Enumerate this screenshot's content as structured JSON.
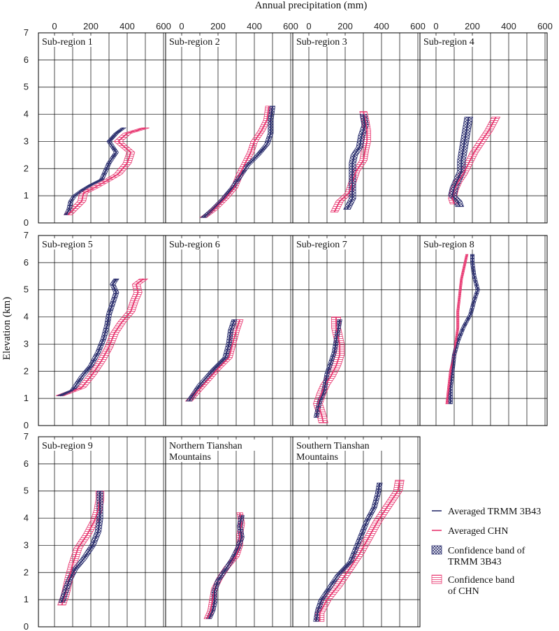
{
  "chart_data": {
    "type": "line",
    "title": "Annual precipitation (mm)",
    "xlabel": "Annual precipitation (mm)",
    "ylabel": "Elevation (km)",
    "xlim": [
      0,
      600
    ],
    "ylim": [
      0,
      7
    ],
    "xticks": [
      "0",
      "200",
      "400",
      "600"
    ],
    "yticks": [
      "0",
      "1",
      "2",
      "3",
      "4",
      "5",
      "6",
      "7"
    ],
    "grid": true,
    "legend_position": "bottom-right",
    "colors": {
      "trmm": "#2b2f6e",
      "chn": "#e8356f"
    },
    "legend": [
      {
        "label": "Averaged TRMM 3B43",
        "kind": "line",
        "color": "#2b2f6e"
      },
      {
        "label": "Averaged CHN",
        "kind": "line",
        "color": "#e8356f"
      },
      {
        "label": "Confidence band of TRMM 3B43",
        "lines": [
          "Confidence band of",
          "TRMM 3B43"
        ],
        "kind": "crosshatch",
        "color": "#2b2f6e"
      },
      {
        "label": "Confidence band of CHN",
        "lines": [
          "Confidence band",
          "of CHN"
        ],
        "kind": "hatch",
        "color": "#e8356f"
      }
    ],
    "panels": [
      {
        "title": "Sub-region 1",
        "trmm": [
          [
            65,
            0.3
          ],
          [
            80,
            0.5
          ],
          [
            90,
            0.8
          ],
          [
            110,
            1.0
          ],
          [
            150,
            1.2
          ],
          [
            200,
            1.4
          ],
          [
            260,
            1.6
          ],
          [
            280,
            1.9
          ],
          [
            300,
            2.2
          ],
          [
            340,
            2.6
          ],
          [
            300,
            3.0
          ],
          [
            340,
            3.3
          ],
          [
            380,
            3.5
          ]
        ],
        "trmm_hw": 12,
        "chn": [
          [
            75,
            0.3
          ],
          [
            120,
            0.6
          ],
          [
            150,
            0.8
          ],
          [
            160,
            1.1
          ],
          [
            220,
            1.3
          ],
          [
            300,
            1.6
          ],
          [
            350,
            1.8
          ],
          [
            400,
            2.2
          ],
          [
            420,
            2.6
          ],
          [
            350,
            3.0
          ],
          [
            400,
            3.3
          ],
          [
            500,
            3.5
          ]
        ],
        "chn_hw": 22
      },
      {
        "title": "Sub-region 2",
        "trmm": [
          [
            120,
            0.2
          ],
          [
            170,
            0.5
          ],
          [
            230,
            0.9
          ],
          [
            280,
            1.3
          ],
          [
            320,
            1.7
          ],
          [
            360,
            2.1
          ],
          [
            420,
            2.5
          ],
          [
            470,
            2.9
          ],
          [
            490,
            3.3
          ],
          [
            490,
            3.8
          ],
          [
            500,
            4.3
          ]
        ],
        "trmm_hw": 14,
        "chn": [
          [
            120,
            0.2
          ],
          [
            180,
            0.5
          ],
          [
            240,
            0.9
          ],
          [
            290,
            1.3
          ],
          [
            320,
            1.8
          ],
          [
            350,
            2.2
          ],
          [
            380,
            2.6
          ],
          [
            400,
            3.0
          ],
          [
            440,
            3.4
          ],
          [
            470,
            3.8
          ],
          [
            480,
            4.3
          ]
        ],
        "chn_hw": 18
      },
      {
        "title": "Sub-region 3",
        "trmm": [
          [
            210,
            0.5
          ],
          [
            240,
            0.9
          ],
          [
            240,
            1.4
          ],
          [
            240,
            1.9
          ],
          [
            240,
            2.2
          ],
          [
            250,
            2.5
          ],
          [
            280,
            2.8
          ],
          [
            290,
            3.2
          ],
          [
            310,
            3.6
          ],
          [
            300,
            4.0
          ]
        ],
        "trmm_hw": 18,
        "chn": [
          [
            140,
            0.4
          ],
          [
            170,
            0.8
          ],
          [
            220,
            1.1
          ],
          [
            240,
            1.5
          ],
          [
            260,
            1.9
          ],
          [
            300,
            2.3
          ],
          [
            310,
            2.7
          ],
          [
            320,
            3.0
          ],
          [
            320,
            3.4
          ],
          [
            310,
            3.8
          ],
          [
            300,
            4.1
          ]
        ],
        "chn_hw": 20
      },
      {
        "title": "Sub-region 4",
        "trmm": [
          [
            130,
            0.6
          ],
          [
            120,
            0.8
          ],
          [
            90,
            1.0
          ],
          [
            100,
            1.3
          ],
          [
            120,
            1.6
          ],
          [
            140,
            1.9
          ],
          [
            140,
            2.3
          ],
          [
            150,
            2.7
          ],
          [
            160,
            3.1
          ],
          [
            170,
            3.5
          ],
          [
            180,
            3.9
          ]
        ],
        "trmm_hw": 22,
        "chn": [
          [
            100,
            0.7
          ],
          [
            90,
            0.9
          ],
          [
            100,
            1.2
          ],
          [
            120,
            1.5
          ],
          [
            150,
            1.8
          ],
          [
            180,
            2.2
          ],
          [
            210,
            2.6
          ],
          [
            250,
            3.0
          ],
          [
            290,
            3.4
          ],
          [
            330,
            3.9
          ]
        ],
        "chn_hw": 22
      },
      {
        "title": "Sub-region 5",
        "trmm": [
          [
            30,
            1.1
          ],
          [
            100,
            1.3
          ],
          [
            150,
            1.8
          ],
          [
            200,
            2.2
          ],
          [
            240,
            2.7
          ],
          [
            270,
            3.2
          ],
          [
            290,
            3.7
          ],
          [
            300,
            4.1
          ],
          [
            320,
            4.5
          ],
          [
            340,
            4.9
          ],
          [
            320,
            5.2
          ],
          [
            340,
            5.4
          ]
        ],
        "trmm_hw": 14,
        "chn": [
          [
            30,
            1.1
          ],
          [
            150,
            1.4
          ],
          [
            210,
            1.9
          ],
          [
            260,
            2.4
          ],
          [
            300,
            2.9
          ],
          [
            330,
            3.4
          ],
          [
            370,
            3.8
          ],
          [
            420,
            4.2
          ],
          [
            440,
            4.6
          ],
          [
            460,
            4.9
          ],
          [
            450,
            5.2
          ],
          [
            490,
            5.4
          ]
        ],
        "chn_hw": 22
      },
      {
        "title": "Sub-region 6",
        "trmm": [
          [
            40,
            0.9
          ],
          [
            70,
            1.2
          ],
          [
            100,
            1.5
          ],
          [
            140,
            1.8
          ],
          [
            180,
            2.1
          ],
          [
            240,
            2.5
          ],
          [
            260,
            3.0
          ],
          [
            270,
            3.5
          ],
          [
            290,
            3.9
          ]
        ],
        "trmm_hw": 14,
        "chn": [
          [
            40,
            0.9
          ],
          [
            80,
            1.2
          ],
          [
            120,
            1.5
          ],
          [
            160,
            1.8
          ],
          [
            200,
            2.1
          ],
          [
            260,
            2.5
          ],
          [
            280,
            3.0
          ],
          [
            300,
            3.5
          ],
          [
            320,
            3.9
          ]
        ],
        "chn_hw": 18
      },
      {
        "title": "Sub-region 7",
        "trmm": [
          [
            40,
            0.3
          ],
          [
            50,
            0.6
          ],
          [
            60,
            0.9
          ],
          [
            80,
            1.2
          ],
          [
            90,
            1.5
          ],
          [
            100,
            1.9
          ],
          [
            120,
            2.3
          ],
          [
            140,
            2.7
          ],
          [
            150,
            3.1
          ],
          [
            160,
            3.5
          ],
          [
            170,
            3.9
          ]
        ],
        "trmm_hw": 12,
        "chn": [
          [
            80,
            0.1
          ],
          [
            70,
            0.4
          ],
          [
            50,
            0.8
          ],
          [
            70,
            1.2
          ],
          [
            90,
            1.5
          ],
          [
            120,
            1.8
          ],
          [
            150,
            2.2
          ],
          [
            170,
            2.6
          ],
          [
            170,
            3.0
          ],
          [
            160,
            3.3
          ],
          [
            150,
            3.6
          ],
          [
            150,
            4.0
          ]
        ],
        "chn_hw": 25
      },
      {
        "title": "Sub-region 8",
        "trmm": [
          [
            80,
            0.8
          ],
          [
            80,
            1.4
          ],
          [
            90,
            2.0
          ],
          [
            100,
            2.6
          ],
          [
            120,
            3.1
          ],
          [
            150,
            3.6
          ],
          [
            190,
            4.1
          ],
          [
            210,
            4.6
          ],
          [
            230,
            5.0
          ],
          [
            210,
            5.5
          ],
          [
            200,
            6.0
          ],
          [
            200,
            6.3
          ]
        ],
        "trmm_hw": 10,
        "chn": [
          [
            60,
            0.8
          ],
          [
            70,
            1.4
          ],
          [
            80,
            2.0
          ],
          [
            100,
            2.6
          ],
          [
            110,
            3.1
          ],
          [
            120,
            3.6
          ],
          [
            120,
            4.2
          ],
          [
            130,
            4.8
          ],
          [
            140,
            5.4
          ],
          [
            160,
            6.0
          ],
          [
            170,
            6.3
          ]
        ],
        "chn_hw": 6
      },
      {
        "title": "Sub-region 9",
        "trmm": [
          [
            40,
            0.9
          ],
          [
            60,
            1.3
          ],
          [
            80,
            1.7
          ],
          [
            110,
            2.1
          ],
          [
            160,
            2.5
          ],
          [
            210,
            3.0
          ],
          [
            240,
            3.5
          ],
          [
            250,
            4.0
          ],
          [
            250,
            4.5
          ],
          [
            250,
            5.0
          ]
        ],
        "trmm_hw": 16,
        "chn": [
          [
            40,
            0.8
          ],
          [
            60,
            1.2
          ],
          [
            80,
            1.8
          ],
          [
            100,
            2.3
          ],
          [
            130,
            2.9
          ],
          [
            180,
            3.4
          ],
          [
            220,
            3.9
          ],
          [
            240,
            4.3
          ],
          [
            250,
            4.7
          ],
          [
            250,
            5.0
          ]
        ],
        "chn_hw": 22
      },
      {
        "title": "Northern Tianshan Mountains",
        "title_lines": [
          "Northern Tianshan",
          "Mountains"
        ],
        "trmm": [
          [
            150,
            0.3
          ],
          [
            170,
            0.6
          ],
          [
            180,
            0.9
          ],
          [
            180,
            1.3
          ],
          [
            200,
            1.7
          ],
          [
            240,
            2.1
          ],
          [
            280,
            2.5
          ],
          [
            310,
            2.9
          ],
          [
            330,
            3.3
          ],
          [
            320,
            3.7
          ],
          [
            330,
            4.1
          ]
        ],
        "trmm_hw": 14,
        "chn": [
          [
            140,
            0.3
          ],
          [
            160,
            0.6
          ],
          [
            170,
            1.0
          ],
          [
            180,
            1.4
          ],
          [
            210,
            1.8
          ],
          [
            250,
            2.2
          ],
          [
            300,
            2.6
          ],
          [
            320,
            3.0
          ],
          [
            320,
            3.4
          ],
          [
            330,
            3.8
          ],
          [
            320,
            4.2
          ]
        ],
        "chn_hw": 16
      },
      {
        "title": "Southern Tianshan Mountains",
        "title_lines": [
          "Southern Tianshan",
          "Mountains"
        ],
        "trmm": [
          [
            40,
            0.2
          ],
          [
            50,
            0.6
          ],
          [
            70,
            1.0
          ],
          [
            110,
            1.4
          ],
          [
            160,
            1.9
          ],
          [
            230,
            2.4
          ],
          [
            260,
            2.9
          ],
          [
            290,
            3.4
          ],
          [
            320,
            3.9
          ],
          [
            360,
            4.4
          ],
          [
            380,
            4.9
          ],
          [
            390,
            5.3
          ]
        ],
        "trmm_hw": 14,
        "chn": [
          [
            60,
            0.2
          ],
          [
            60,
            0.5
          ],
          [
            100,
            1.0
          ],
          [
            160,
            1.5
          ],
          [
            220,
            2.1
          ],
          [
            280,
            2.7
          ],
          [
            330,
            3.3
          ],
          [
            380,
            3.9
          ],
          [
            440,
            4.5
          ],
          [
            490,
            5.0
          ],
          [
            500,
            5.4
          ]
        ],
        "chn_hw": 24
      }
    ]
  }
}
